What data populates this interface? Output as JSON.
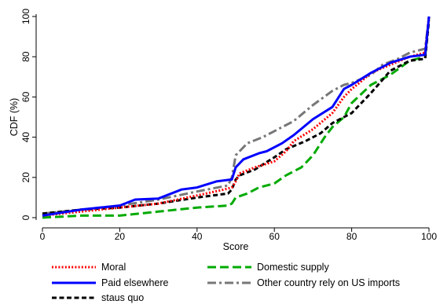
{
  "chart_data": {
    "type": "line",
    "title": "",
    "xlabel": "Score",
    "ylabel": "CDF (%)",
    "xlim": [
      0,
      100
    ],
    "ylim": [
      0,
      100
    ],
    "xticks": [
      0,
      20,
      40,
      60,
      80,
      100
    ],
    "yticks": [
      0,
      20,
      40,
      60,
      80,
      100
    ],
    "grid": false,
    "legend_position": "bottom",
    "series": [
      {
        "name": "Moral",
        "color": "#ff0000",
        "style": "dotted",
        "points": [
          [
            0,
            1
          ],
          [
            10,
            3
          ],
          [
            20,
            5
          ],
          [
            30,
            7
          ],
          [
            40,
            11
          ],
          [
            47,
            14
          ],
          [
            49,
            15
          ],
          [
            50,
            18
          ],
          [
            51,
            22
          ],
          [
            55,
            25
          ],
          [
            60,
            28
          ],
          [
            63,
            33
          ],
          [
            65,
            38
          ],
          [
            70,
            44
          ],
          [
            75,
            52
          ],
          [
            78,
            60
          ],
          [
            80,
            64
          ],
          [
            82,
            67
          ],
          [
            85,
            72
          ],
          [
            90,
            76
          ],
          [
            95,
            80
          ],
          [
            99,
            82
          ],
          [
            100,
            100
          ]
        ]
      },
      {
        "name": "Paid elsewhere",
        "color": "#0000ff",
        "style": "solid",
        "points": [
          [
            0,
            1
          ],
          [
            10,
            4
          ],
          [
            20,
            6
          ],
          [
            24,
            9
          ],
          [
            30,
            9.5
          ],
          [
            36,
            14
          ],
          [
            40,
            15
          ],
          [
            45,
            18
          ],
          [
            49,
            19
          ],
          [
            50,
            25
          ],
          [
            52,
            29
          ],
          [
            56,
            32
          ],
          [
            58,
            33
          ],
          [
            62,
            37
          ],
          [
            65,
            41
          ],
          [
            70,
            49
          ],
          [
            75,
            55
          ],
          [
            78,
            64
          ],
          [
            80,
            66
          ],
          [
            85,
            72
          ],
          [
            90,
            77
          ],
          [
            95,
            80
          ],
          [
            99,
            81
          ],
          [
            100,
            100
          ]
        ]
      },
      {
        "name": "staus quo",
        "color": "#000000",
        "style": "dashed",
        "points": [
          [
            0,
            2
          ],
          [
            10,
            4
          ],
          [
            20,
            5
          ],
          [
            30,
            7
          ],
          [
            40,
            10
          ],
          [
            48,
            12
          ],
          [
            49,
            14
          ],
          [
            50,
            19
          ],
          [
            51,
            21
          ],
          [
            55,
            24
          ],
          [
            60,
            30
          ],
          [
            63,
            34
          ],
          [
            68,
            38
          ],
          [
            72,
            42
          ],
          [
            75,
            47
          ],
          [
            80,
            52
          ],
          [
            85,
            62
          ],
          [
            90,
            73
          ],
          [
            95,
            78
          ],
          [
            99,
            79
          ],
          [
            100,
            98
          ]
        ]
      },
      {
        "name": "Domestic supply",
        "color": "#00aa00",
        "style": "longdash",
        "points": [
          [
            0,
            0
          ],
          [
            10,
            1
          ],
          [
            20,
            1
          ],
          [
            30,
            3
          ],
          [
            40,
            5
          ],
          [
            48,
            6
          ],
          [
            49,
            7
          ],
          [
            50,
            10
          ],
          [
            53,
            12
          ],
          [
            56,
            15
          ],
          [
            60,
            17
          ],
          [
            63,
            21
          ],
          [
            67,
            25
          ],
          [
            70,
            31
          ],
          [
            73,
            40
          ],
          [
            75,
            45
          ],
          [
            78,
            50
          ],
          [
            80,
            57
          ],
          [
            85,
            66
          ],
          [
            90,
            71
          ],
          [
            95,
            78
          ],
          [
            99,
            80
          ],
          [
            100,
            100
          ]
        ]
      },
      {
        "name": "Other country rely on US imports",
        "color": "#777777",
        "style": "dashdot",
        "points": [
          [
            0,
            2
          ],
          [
            10,
            4
          ],
          [
            20,
            6
          ],
          [
            30,
            9
          ],
          [
            40,
            13
          ],
          [
            48,
            16
          ],
          [
            49,
            20
          ],
          [
            50,
            31
          ],
          [
            53,
            37
          ],
          [
            57,
            40
          ],
          [
            60,
            43
          ],
          [
            65,
            48
          ],
          [
            70,
            56
          ],
          [
            75,
            63
          ],
          [
            78,
            66
          ],
          [
            80,
            67
          ],
          [
            85,
            71
          ],
          [
            88,
            76
          ],
          [
            92,
            79
          ],
          [
            95,
            82
          ],
          [
            99,
            84
          ],
          [
            100,
            100
          ]
        ]
      }
    ]
  }
}
